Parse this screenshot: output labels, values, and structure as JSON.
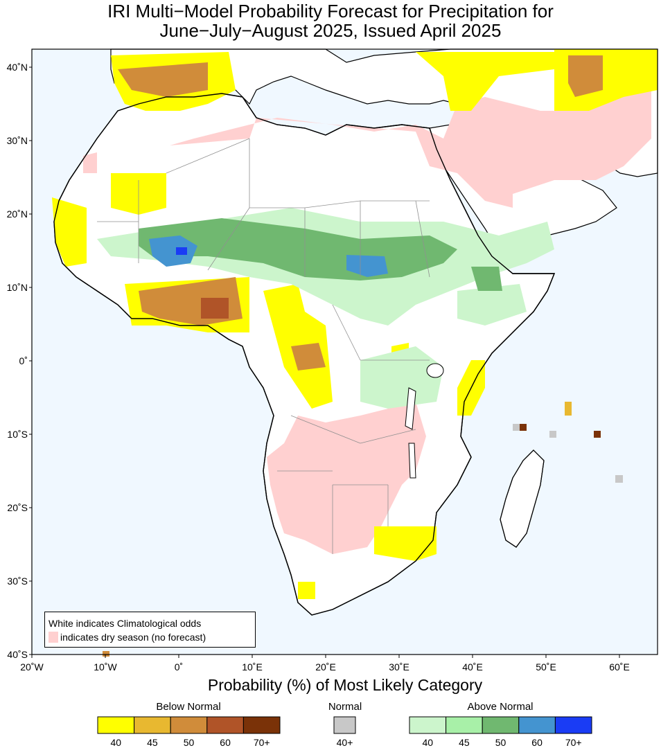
{
  "title_line1": "IRI Multi−Model Probability Forecast for Precipitation for",
  "title_line2": "June−July−August 2025, Issued April 2025",
  "lat_labels": [
    "40˚N",
    "30˚N",
    "20˚N",
    "10˚N",
    "0˚",
    "10˚S",
    "20˚S",
    "30˚S",
    "40˚S"
  ],
  "lon_labels": [
    "20˚W",
    "10˚W",
    "0˚",
    "10˚E",
    "20˚E",
    "30˚E",
    "40˚E",
    "50˚E",
    "60˚E"
  ],
  "legend_note": {
    "line1": "White indicates Climatological odds",
    "line2": "indicates dry season (no forecast)"
  },
  "colorbar": {
    "title": "Probability (%) of Most Likely Category",
    "below_label": "Below Normal",
    "normal_label": "Normal",
    "above_label": "Above Normal",
    "below": [
      {
        "label": "40",
        "color": "#ffff00"
      },
      {
        "label": "45",
        "color": "#e8b830"
      },
      {
        "label": "50",
        "color": "#d08c3a"
      },
      {
        "label": "60",
        "color": "#b05428"
      },
      {
        "label": "70+",
        "color": "#7a3208"
      }
    ],
    "normal": [
      {
        "label": "40+",
        "color": "#c8c8c8"
      }
    ],
    "above": [
      {
        "label": "40",
        "color": "#ccf5cc"
      },
      {
        "label": "45",
        "color": "#a8f0a8"
      },
      {
        "label": "50",
        "color": "#70b870"
      },
      {
        "label": "60",
        "color": "#4494d0"
      },
      {
        "label": "70+",
        "color": "#1a3cf5"
      }
    ]
  },
  "colors": {
    "ocean": "#f0f8ff",
    "land": "#ffffff",
    "dry_season": "#ffd0d0"
  }
}
